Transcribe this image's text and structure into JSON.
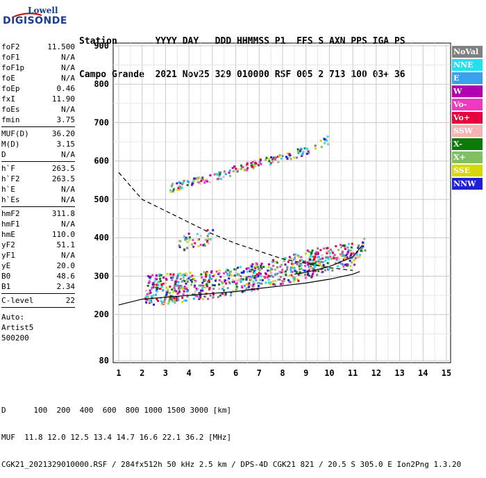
{
  "logo": {
    "line1": "Lowell",
    "line2": "DIGISONDE"
  },
  "header": {
    "labels_row": "Station       YYYY DAY   DDD HHMMSS P1  FFS S AXN PPS IGA PS",
    "values_row": "Campo Grande  2021 Nov25 329 010000 RSF 005 2 713 100 03+ 36"
  },
  "params": [
    {
      "key": "foF2",
      "value": "11.500"
    },
    {
      "key": "foF1",
      "value": "N/A"
    },
    {
      "key": "foF1p",
      "value": "N/A"
    },
    {
      "key": "foE",
      "value": "N/A"
    },
    {
      "key": "foEp",
      "value": "0.46"
    },
    {
      "key": "fxI",
      "value": "11.90"
    },
    {
      "key": "foEs",
      "value": "N/A"
    },
    {
      "key": "fmin",
      "value": "3.75"
    },
    {
      "sep": true
    },
    {
      "key": "MUF(D)",
      "value": "36.20"
    },
    {
      "key": "M(D)",
      "value": "3.15"
    },
    {
      "key": "D",
      "value": "N/A"
    },
    {
      "sep": true
    },
    {
      "key": "h`F",
      "value": "263.5"
    },
    {
      "key": "h`F2",
      "value": "263.5"
    },
    {
      "key": "h`E",
      "value": "N/A"
    },
    {
      "key": "h`Es",
      "value": "N/A"
    },
    {
      "sep": true
    },
    {
      "key": "hmF2",
      "value": "311.8"
    },
    {
      "key": "hmF1",
      "value": "N/A"
    },
    {
      "key": "hmE",
      "value": "110.0"
    },
    {
      "key": "yF2",
      "value": "51.1"
    },
    {
      "key": "yF1",
      "value": "N/A"
    },
    {
      "key": "yE",
      "value": "20.0"
    },
    {
      "key": "B0",
      "value": "48.6"
    },
    {
      "key": "B1",
      "value": "2.34"
    },
    {
      "sep": true
    },
    {
      "key": "C-level",
      "value": "22"
    },
    {
      "sep": true
    }
  ],
  "autoscale": {
    "line1": "Auto:",
    "line2": "Artist5",
    "line3": "500200"
  },
  "legend": [
    {
      "label": "NoVal",
      "color": "#808080"
    },
    {
      "label": "NNE",
      "color": "#22e0f0"
    },
    {
      "label": "E",
      "color": "#3aa0f0"
    },
    {
      "label": "W",
      "color": "#b000b0"
    },
    {
      "label": "Vo-",
      "color": "#f038c0"
    },
    {
      "label": "Vo+",
      "color": "#e8003c"
    },
    {
      "label": "SSW",
      "color": "#f4b4b4"
    },
    {
      "label": "X-",
      "color": "#0a7a0a"
    },
    {
      "label": "X+",
      "color": "#80c060"
    },
    {
      "label": "SSE",
      "color": "#d8d800"
    },
    {
      "label": "NNW",
      "color": "#2020d8"
    }
  ],
  "footer": {
    "d_row": "D      100  200  400  600  800 1000 1500 3000 [km]",
    "muf_row": "MUF  11.8 12.0 12.5 13.4 14.7 16.6 22.1 36.2 [MHz]",
    "file_row": "CGK21_2021329010000.RSF / 284fx512h 50 kHz 2.5 km / DPS-4D CGK21 821 / 20.5 S 305.0 E Ion2Png 1.3.20"
  },
  "chart_data": {
    "type": "scatter",
    "xlim": [
      1,
      15
    ],
    "ylim": [
      80,
      900
    ],
    "xticks": [
      1,
      2,
      3,
      4,
      5,
      6,
      7,
      8,
      9,
      10,
      11,
      12,
      13,
      14,
      15
    ],
    "yticks": [
      80,
      200,
      300,
      400,
      500,
      600,
      700,
      800,
      900
    ],
    "grid": true,
    "series": [
      {
        "name": "X+",
        "curve": "F2 O-trace",
        "x": [
          2.1,
          3,
          4,
          5,
          6,
          7,
          8,
          9,
          10,
          11,
          11.5
        ],
        "y": [
          245,
          250,
          258,
          265,
          275,
          290,
          300,
          315,
          335,
          350,
          390
        ]
      },
      {
        "name": "E",
        "curve": "F2 echoes",
        "x": [
          2.2,
          3,
          4,
          5,
          6,
          7,
          8,
          9,
          10,
          11
        ],
        "y": [
          285,
          290,
          292,
          297,
          305,
          318,
          330,
          350,
          362,
          370
        ]
      },
      {
        "name": "SSE",
        "curve": "second hop",
        "x": [
          3,
          4,
          5,
          6,
          7,
          8,
          9,
          10
        ],
        "y": [
          530,
          545,
          560,
          580,
          598,
          610,
          630,
          660
        ]
      },
      {
        "name": "NNE",
        "curve": "oblique",
        "x": [
          3.5,
          4,
          5
        ],
        "y": [
          385,
          395,
          405
        ]
      }
    ],
    "curves": {
      "true_height": {
        "x": [
          1,
          2,
          3,
          4,
          5,
          6,
          7,
          8,
          9,
          10,
          11,
          11.3
        ],
        "y": [
          225,
          240,
          245,
          250,
          255,
          260,
          268,
          275,
          282,
          292,
          305,
          312
        ]
      },
      "muf": {
        "x": [
          1,
          2,
          3,
          4,
          5,
          6,
          7,
          8,
          9,
          10,
          11
        ],
        "y": [
          570,
          500,
          470,
          440,
          410,
          385,
          365,
          345,
          333,
          322,
          315
        ]
      },
      "model": {
        "x": [
          8.5,
          9,
          10,
          11,
          11.4
        ],
        "y": [
          305,
          310,
          325,
          350,
          380
        ]
      }
    }
  }
}
